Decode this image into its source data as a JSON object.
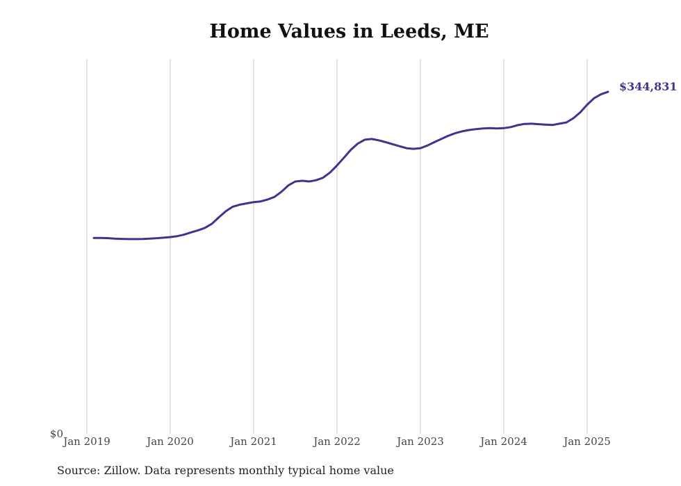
{
  "chart_data": {
    "type": "line",
    "title": "Home Values in Leeds, ME",
    "xlabel": "",
    "ylabel": "",
    "x_tick_labels": [
      "Jan 2019",
      "Jan 2020",
      "Jan 2021",
      "Jan 2022",
      "Jan 2023",
      "Jan 2024",
      "Jan 2025"
    ],
    "y_tick_labels": [
      "$0"
    ],
    "ylim": [
      0,
      372000
    ],
    "grid": "vertical",
    "series": [
      {
        "color": "#3d3590",
        "end_label": "$344,831",
        "points": [
          [
            "2019-02",
            194500
          ],
          [
            "2019-03",
            194500
          ],
          [
            "2019-04",
            194300
          ],
          [
            "2019-05",
            193800
          ],
          [
            "2019-06",
            193500
          ],
          [
            "2019-07",
            193300
          ],
          [
            "2019-08",
            193300
          ],
          [
            "2019-09",
            193400
          ],
          [
            "2019-10",
            193800
          ],
          [
            "2019-11",
            194200
          ],
          [
            "2019-12",
            194700
          ],
          [
            "2020-01",
            195300
          ],
          [
            "2020-02",
            196200
          ],
          [
            "2020-03",
            197800
          ],
          [
            "2020-04",
            200000
          ],
          [
            "2020-05",
            202000
          ],
          [
            "2020-06",
            204500
          ],
          [
            "2020-07",
            208600
          ],
          [
            "2020-08",
            215000
          ],
          [
            "2020-09",
            221000
          ],
          [
            "2020-10",
            225500
          ],
          [
            "2020-11",
            227500
          ],
          [
            "2020-12",
            228800
          ],
          [
            "2021-01",
            230000
          ],
          [
            "2021-02",
            230700
          ],
          [
            "2021-03",
            232600
          ],
          [
            "2021-04",
            235200
          ],
          [
            "2021-05",
            240300
          ],
          [
            "2021-06",
            246700
          ],
          [
            "2021-07",
            250500
          ],
          [
            "2021-08",
            251200
          ],
          [
            "2021-09",
            250500
          ],
          [
            "2021-10",
            251800
          ],
          [
            "2021-11",
            254300
          ],
          [
            "2021-12",
            259400
          ],
          [
            "2022-01",
            266500
          ],
          [
            "2022-02",
            274200
          ],
          [
            "2022-03",
            282000
          ],
          [
            "2022-04",
            288200
          ],
          [
            "2022-05",
            292000
          ],
          [
            "2022-06",
            292700
          ],
          [
            "2022-07",
            291400
          ],
          [
            "2022-08",
            289500
          ],
          [
            "2022-09",
            287500
          ],
          [
            "2022-10",
            285500
          ],
          [
            "2022-11",
            283600
          ],
          [
            "2022-12",
            282900
          ],
          [
            "2023-01",
            283600
          ],
          [
            "2023-02",
            286200
          ],
          [
            "2023-03",
            289500
          ],
          [
            "2023-04",
            292700
          ],
          [
            "2023-05",
            295900
          ],
          [
            "2023-06",
            298400
          ],
          [
            "2023-07",
            300300
          ],
          [
            "2023-08",
            301600
          ],
          [
            "2023-09",
            302500
          ],
          [
            "2023-10",
            303200
          ],
          [
            "2023-11",
            303500
          ],
          [
            "2023-12",
            303200
          ],
          [
            "2024-01",
            303500
          ],
          [
            "2024-02",
            304500
          ],
          [
            "2024-03",
            306400
          ],
          [
            "2024-04",
            307700
          ],
          [
            "2024-05",
            307900
          ],
          [
            "2024-06",
            307400
          ],
          [
            "2024-07",
            306900
          ],
          [
            "2024-08",
            306600
          ],
          [
            "2024-09",
            307900
          ],
          [
            "2024-10",
            309100
          ],
          [
            "2024-11",
            313300
          ],
          [
            "2024-12",
            319100
          ],
          [
            "2025-01",
            326800
          ],
          [
            "2025-02",
            333200
          ],
          [
            "2025-03",
            337100
          ],
          [
            "2025-04",
            339500
          ]
        ]
      }
    ]
  },
  "source_note": "Source: Zillow. Data represents monthly typical home value"
}
